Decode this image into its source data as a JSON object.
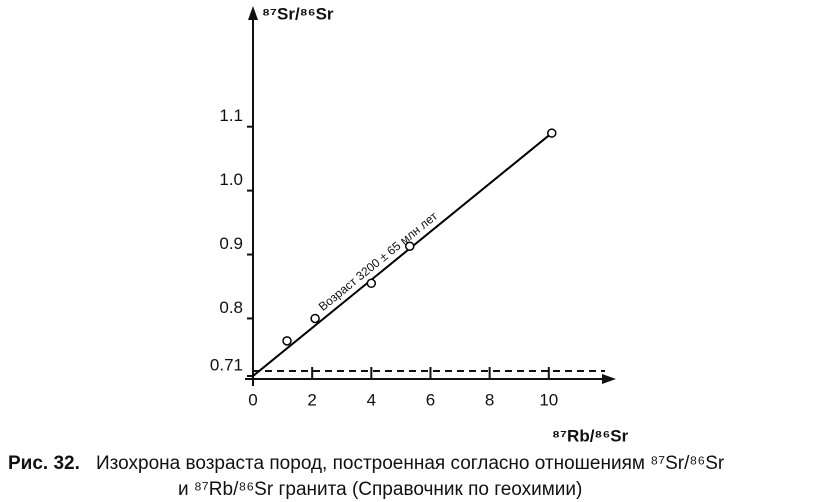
{
  "chart_data": {
    "type": "scatter",
    "y_label": "⁸⁷Sr/⁸⁶Sr",
    "x_label": "⁸⁷Rb/⁸⁶Sr",
    "x": [
      1.15,
      2.1,
      4.0,
      5.3,
      10.1
    ],
    "y": [
      0.765,
      0.8,
      0.855,
      0.913,
      1.09
    ],
    "color": "#000000",
    "fit": {
      "label": "Возраст 3200 ± 65 млн лет",
      "x": [
        0,
        10.1
      ],
      "y": [
        0.71,
        1.09
      ]
    },
    "reference_y": 0.71,
    "xlim": [
      0,
      11.9
    ],
    "ylim": [
      0.71,
      1.27
    ],
    "xticks": [
      0,
      2,
      4,
      6,
      8,
      10
    ],
    "yticks": [
      0.71,
      0.8,
      0.9,
      {
        "value": 1.0,
        "label": "1.0"
      },
      1.1
    ],
    "caption_number": "Рис. 32.",
    "caption_line1": "Изохрона возраста пород, построенная согласно отношениям ⁸⁷Sr/⁸⁶Sr",
    "caption_line2": "и ⁸⁷Rb/⁸⁶Sr гранита (Справочник по геохимии)"
  }
}
